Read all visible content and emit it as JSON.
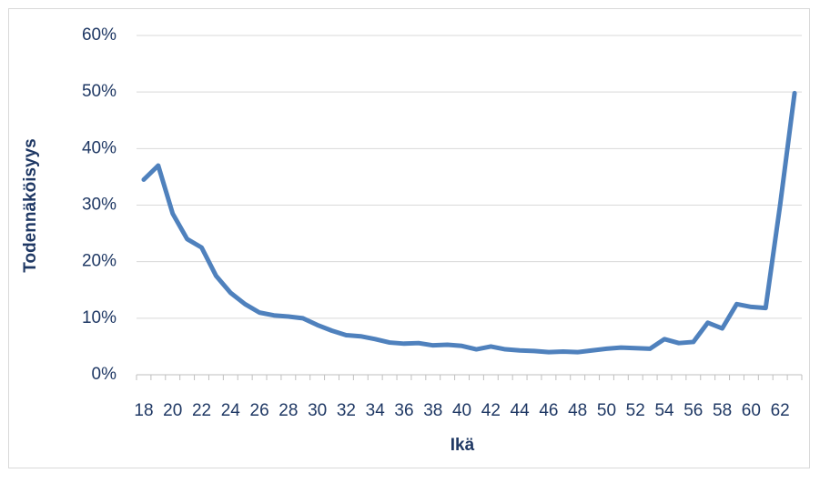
{
  "chart_data": {
    "type": "line",
    "x_label": "Ikä",
    "y_label": "Todennäköisyys",
    "categories": [
      "18",
      null,
      "20",
      null,
      "22",
      null,
      "24",
      null,
      "26",
      null,
      "28",
      null,
      "30",
      null,
      "32",
      null,
      "34",
      null,
      "36",
      null,
      "38",
      null,
      "40",
      null,
      "42",
      null,
      "44",
      null,
      "46",
      null,
      "48",
      null,
      "50",
      null,
      "52",
      null,
      "54",
      null,
      "56",
      null,
      "58",
      null,
      "60",
      null,
      "62",
      null
    ],
    "series": [
      {
        "name": "Todennäköisyys",
        "color": "#4f81bd",
        "values": [
          34.5,
          37,
          28.5,
          24,
          22.5,
          17.5,
          14.5,
          12.5,
          11,
          10.5,
          10.3,
          10,
          8.8,
          7.8,
          7,
          6.8,
          6.3,
          5.7,
          5.5,
          5.6,
          5.2,
          5.3,
          5.1,
          4.5,
          5,
          4.5,
          4.3,
          4.2,
          4,
          4.1,
          4,
          4.3,
          4.6,
          4.8,
          4.7,
          4.6,
          6.3,
          5.6,
          5.8,
          9.2,
          8.2,
          12.5,
          12,
          11.8,
          30,
          49.8
        ]
      }
    ],
    "ylim": [
      0,
      60
    ],
    "yticks": [
      {
        "value": 0,
        "label": "0%"
      },
      {
        "value": 10,
        "label": "10%"
      },
      {
        "value": 20,
        "label": "20%"
      },
      {
        "value": 30,
        "label": "30%"
      },
      {
        "value": 40,
        "label": "40%"
      },
      {
        "value": 50,
        "label": "50%"
      },
      {
        "value": 60,
        "label": "60%"
      }
    ],
    "grid": true
  }
}
